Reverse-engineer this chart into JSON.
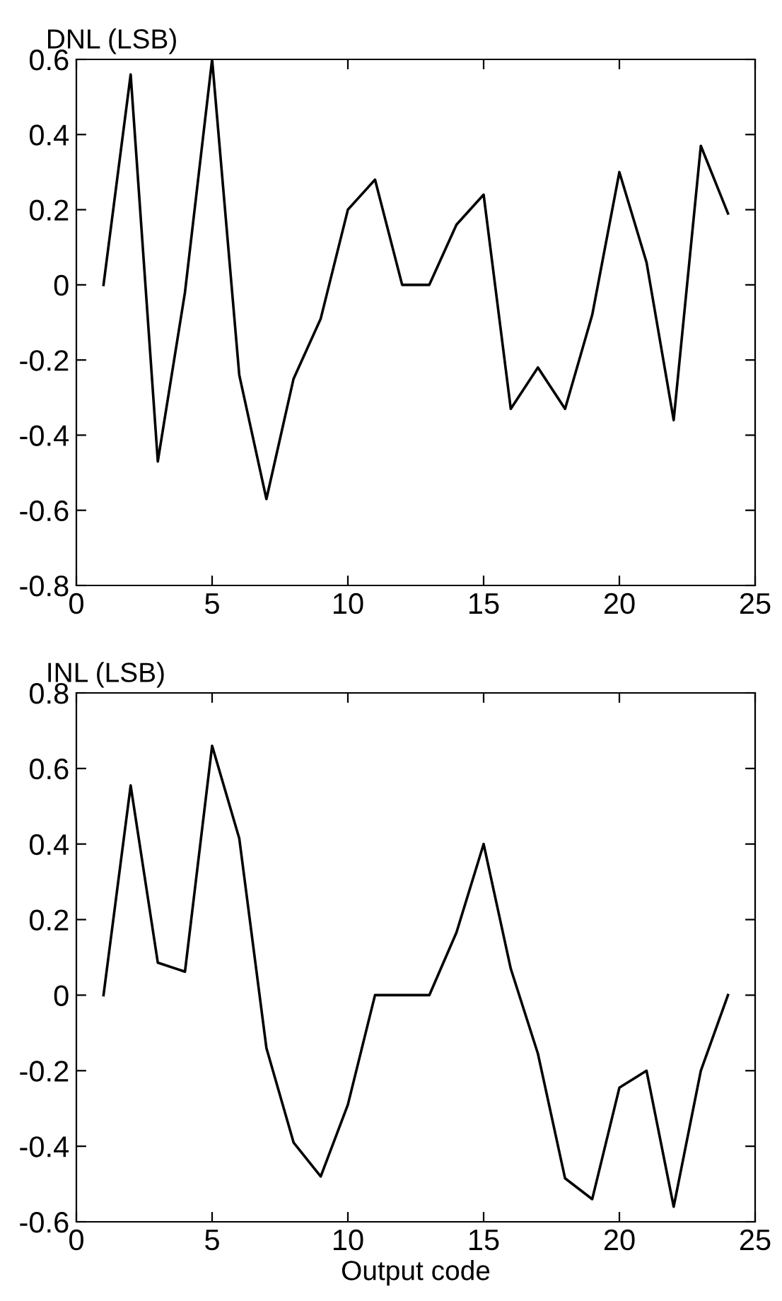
{
  "chart_data": [
    {
      "type": "line",
      "ylabel": "DNL (LSB)",
      "x": [
        1,
        2,
        3,
        4,
        5,
        6,
        7,
        8,
        9,
        10,
        11,
        12,
        13,
        14,
        15,
        16,
        17,
        18,
        19,
        20,
        21,
        22,
        23,
        24
      ],
      "series": [
        {
          "color": "#000000",
          "values": [
            0,
            0.56,
            -0.47,
            -0.02,
            0.6,
            -0.24,
            -0.57,
            -0.25,
            -0.09,
            0.2,
            0.28,
            0,
            0,
            0.16,
            0.24,
            -0.33,
            -0.22,
            -0.33,
            -0.08,
            0.3,
            0.06,
            -0.36,
            0.37,
            0.19
          ]
        }
      ],
      "xlim": [
        0,
        25
      ],
      "xticks": [
        0,
        5,
        10,
        15,
        20,
        25
      ],
      "ylim": [
        -0.8,
        0.6
      ],
      "yticks": [
        -0.8,
        -0.6,
        -0.4,
        -0.2,
        0,
        0.2,
        0.4,
        0.6
      ],
      "grid": false,
      "legend": false
    },
    {
      "type": "line",
      "ylabel": "INL (LSB)",
      "xlabel": "Output code",
      "x": [
        1,
        2,
        3,
        4,
        5,
        6,
        7,
        8,
        9,
        10,
        11,
        12,
        13,
        14,
        15,
        16,
        17,
        18,
        19,
        20,
        21,
        22,
        23,
        24
      ],
      "series": [
        {
          "color": "#000000",
          "values": [
            0,
            0.555,
            0.086,
            0.062,
            0.66,
            0.415,
            -0.14,
            -0.39,
            -0.48,
            -0.29,
            0,
            0,
            0,
            0.166,
            0.4,
            0.07,
            -0.155,
            -0.485,
            -0.54,
            -0.245,
            -0.2,
            -0.56,
            -0.2,
            0
          ]
        }
      ],
      "xlim": [
        0,
        25
      ],
      "xticks": [
        0,
        5,
        10,
        15,
        20,
        25
      ],
      "ylim": [
        -0.6,
        0.8
      ],
      "yticks": [
        -0.6,
        -0.4,
        -0.2,
        0,
        0.2,
        0.4,
        0.6,
        0.8
      ],
      "grid": false,
      "legend": false
    }
  ]
}
